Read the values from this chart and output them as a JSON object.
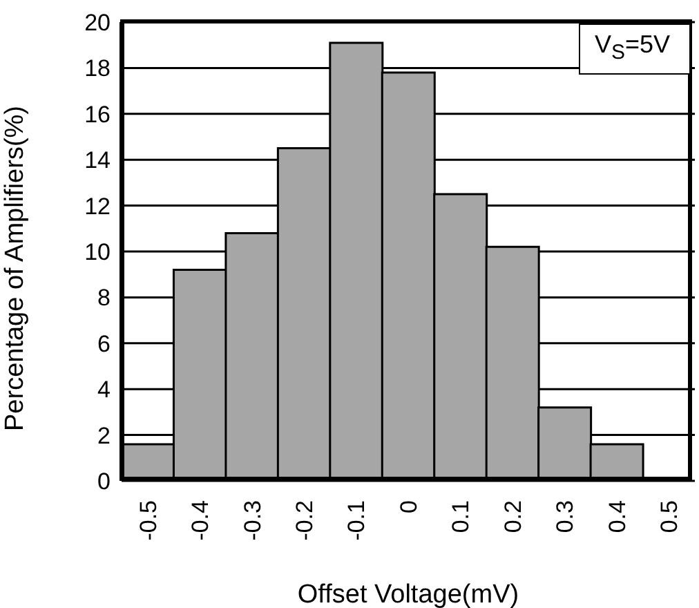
{
  "chart_data": {
    "type": "bar",
    "xlabel": "Offset Voltage(mV)",
    "ylabel": "Percentage of Amplifiers(%)",
    "categories": [
      "-0.5",
      "-0.4",
      "-0.3",
      "-0.2",
      "-0.1",
      "0",
      "0.1",
      "0.2",
      "0.3",
      "0.4",
      "0.5"
    ],
    "values": [
      1.6,
      9.2,
      10.8,
      14.5,
      19.1,
      17.8,
      12.5,
      10.2,
      3.2,
      1.6,
      0
    ],
    "color": "#a6a6a6",
    "ylim": [
      0,
      20
    ],
    "yticks": [
      0,
      2,
      4,
      6,
      8,
      10,
      12,
      14,
      16,
      18,
      20
    ],
    "grid": "y",
    "annotations": [
      "V$_{S}$=5V"
    ]
  }
}
